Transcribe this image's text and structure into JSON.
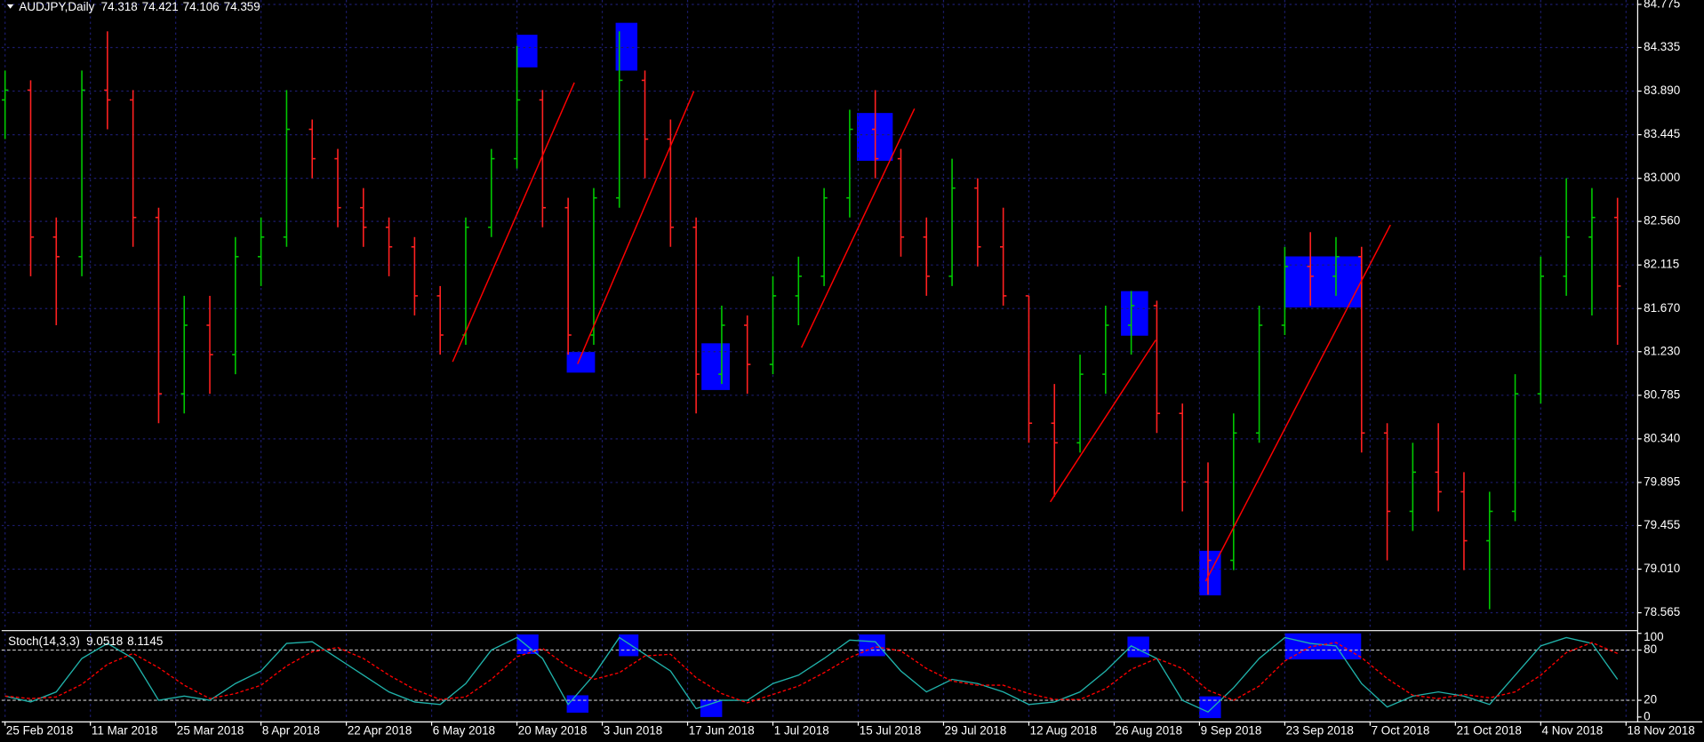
{
  "chart_data": [
    {
      "type": "ohlc",
      "title": "AUDJPY,Daily",
      "readout": [
        74.318,
        74.421,
        74.106,
        74.359
      ],
      "up_color": "#00c800",
      "down_color": "#ff2020",
      "grid": true,
      "x": [
        0,
        3,
        6,
        9,
        12,
        15,
        18,
        21,
        24,
        27,
        30,
        33,
        36,
        39,
        42,
        45,
        48,
        51,
        54,
        57,
        60,
        63,
        66,
        69,
        72,
        75,
        78,
        81,
        84,
        87,
        90,
        93,
        96,
        99,
        102,
        105,
        108,
        111,
        114,
        117,
        120,
        123,
        126,
        129,
        132,
        135,
        138,
        141,
        144,
        147,
        150,
        153,
        156,
        159,
        162,
        165,
        168,
        171,
        174,
        177,
        180,
        183,
        186,
        189
      ],
      "open": [
        83.8,
        83.9,
        82.4,
        82.2,
        83.9,
        83.8,
        82.6,
        80.8,
        81.5,
        81.2,
        82.2,
        82.4,
        83.5,
        83.2,
        82.7,
        82.5,
        82.3,
        81.8,
        81.4,
        82.5,
        83.2,
        83.8,
        82.7,
        81.4,
        82.8,
        84.0,
        83.4,
        82.5,
        81.0,
        81.5,
        81.1,
        81.8,
        82.0,
        82.8,
        83.5,
        83.2,
        82.4,
        82.0,
        82.9,
        82.3,
        81.8,
        80.5,
        80.3,
        81.0,
        81.5,
        81.7,
        80.6,
        79.9,
        79.1,
        80.4,
        81.5,
        82.1,
        82.0,
        82.2,
        80.4,
        79.6,
        80.0,
        79.8,
        79.3,
        79.6,
        80.8,
        82.0,
        82.4,
        82.6
      ],
      "high": [
        84.1,
        84.0,
        82.6,
        84.1,
        84.5,
        83.9,
        82.7,
        81.8,
        81.8,
        82.4,
        82.6,
        83.9,
        83.6,
        83.3,
        82.9,
        82.6,
        82.4,
        81.9,
        82.6,
        83.3,
        84.35,
        83.9,
        82.8,
        82.9,
        84.5,
        84.1,
        83.6,
        82.6,
        81.7,
        81.6,
        82.0,
        82.2,
        82.9,
        83.7,
        83.9,
        83.3,
        82.6,
        83.2,
        83.0,
        82.7,
        81.8,
        80.9,
        81.2,
        81.7,
        81.85,
        81.75,
        80.7,
        80.1,
        80.6,
        81.7,
        82.3,
        82.45,
        82.4,
        82.3,
        80.5,
        80.3,
        80.5,
        80.0,
        79.8,
        81.0,
        82.2,
        83.0,
        82.9,
        82.8
      ],
      "low": [
        83.4,
        82.0,
        81.5,
        82.0,
        83.5,
        82.3,
        80.5,
        80.6,
        80.8,
        81.0,
        81.9,
        82.3,
        83.0,
        82.5,
        82.3,
        82.0,
        81.6,
        81.2,
        81.3,
        82.4,
        83.1,
        82.5,
        81.2,
        81.3,
        82.7,
        83.0,
        82.3,
        80.6,
        80.9,
        80.8,
        81.0,
        81.5,
        81.9,
        82.6,
        83.0,
        82.2,
        81.8,
        81.9,
        82.1,
        81.7,
        80.3,
        79.75,
        80.2,
        80.8,
        81.2,
        80.4,
        79.6,
        78.75,
        79.0,
        80.3,
        81.4,
        81.7,
        81.8,
        80.2,
        79.1,
        79.4,
        79.6,
        79.0,
        78.6,
        79.5,
        80.7,
        81.8,
        81.6,
        81.3
      ],
      "close": [
        83.9,
        82.4,
        82.2,
        83.9,
        83.8,
        82.6,
        80.8,
        81.5,
        81.2,
        82.2,
        82.4,
        83.5,
        83.2,
        82.7,
        82.5,
        82.3,
        81.8,
        81.4,
        82.5,
        83.2,
        83.8,
        82.7,
        81.4,
        82.8,
        84.0,
        83.4,
        82.5,
        81.0,
        81.5,
        81.1,
        81.8,
        82.0,
        82.8,
        83.5,
        83.2,
        82.4,
        82.0,
        82.9,
        82.3,
        81.8,
        80.5,
        80.3,
        81.0,
        81.5,
        81.7,
        80.6,
        79.9,
        79.1,
        80.4,
        81.5,
        82.1,
        82.0,
        82.2,
        80.4,
        79.6,
        80.0,
        79.8,
        79.3,
        79.6,
        80.8,
        82.0,
        82.4,
        82.6,
        81.9
      ],
      "xlim": [
        -0.4,
        191.3
      ],
      "xticks": [
        0,
        10,
        20,
        30,
        40,
        50,
        60,
        70,
        80,
        90,
        100,
        110,
        120,
        130,
        140,
        150,
        160,
        170,
        180,
        190
      ],
      "ylim": [
        78.41,
        84.82
      ],
      "yticks": [
        84.775,
        84.335,
        {
          "value": 83.89,
          "label": "83.890"
        },
        83.445,
        {
          "value": 83.0,
          "label": "83.000"
        },
        {
          "value": 82.56,
          "label": "82.560"
        },
        82.115,
        {
          "value": 81.67,
          "label": "81.670"
        },
        {
          "value": 81.23,
          "label": "81.230"
        },
        80.785,
        {
          "value": 80.34,
          "label": "80.340"
        },
        79.895,
        79.455,
        {
          "value": 79.01,
          "label": "79.010"
        },
        78.565
      ]
    },
    {
      "type": "line",
      "title": "Stoch(14,3,3)",
      "readout": [
        9.0518,
        8.1145
      ],
      "x": [
        0,
        3,
        6,
        9,
        12,
        15,
        18,
        21,
        24,
        27,
        30,
        33,
        36,
        39,
        42,
        45,
        48,
        51,
        54,
        57,
        60,
        63,
        66,
        69,
        72,
        75,
        78,
        81,
        84,
        87,
        90,
        93,
        96,
        99,
        102,
        105,
        108,
        111,
        114,
        117,
        120,
        123,
        126,
        129,
        132,
        135,
        138,
        141,
        144,
        147,
        150,
        153,
        156,
        159,
        162,
        165,
        168,
        171,
        174,
        177,
        180,
        183,
        186,
        189
      ],
      "series": [
        {
          "color": "#20b2aa",
          "values": [
            25,
            18,
            30,
            70,
            88,
            70,
            20,
            25,
            20,
            40,
            55,
            88,
            90,
            70,
            50,
            30,
            18,
            15,
            40,
            80,
            95,
            70,
            15,
            50,
            95,
            75,
            55,
            10,
            20,
            20,
            40,
            50,
            70,
            92,
            90,
            55,
            30,
            45,
            40,
            30,
            15,
            18,
            30,
            55,
            85,
            70,
            20,
            6,
            35,
            70,
            95,
            88,
            85,
            40,
            12,
            25,
            30,
            25,
            15,
            50,
            85,
            95,
            88,
            45
          ]
        },
        {
          "color": "#ff0000",
          "dashed": true,
          "values": [
            25,
            22,
            24,
            39,
            63,
            76,
            59,
            38,
            22,
            28,
            38,
            61,
            78,
            83,
            70,
            50,
            33,
            21,
            24,
            45,
            72,
            82,
            60,
            45,
            53,
            73,
            75,
            47,
            28,
            17,
            27,
            37,
            53,
            71,
            84,
            79,
            58,
            43,
            38,
            38,
            28,
            21,
            21,
            34,
            57,
            70,
            58,
            32,
            20,
            37,
            67,
            84,
            89,
            71,
            46,
            26,
            22,
            27,
            23,
            30,
            50,
            77,
            89,
            76
          ]
        }
      ],
      "xlim": [
        -0.4,
        191.3
      ],
      "xticks": [
        {
          "value": 0,
          "label": "25 Feb 2018"
        },
        {
          "value": 10,
          "label": "11 Mar 2018"
        },
        {
          "value": 20,
          "label": "25 Mar 2018"
        },
        {
          "value": 30,
          "label": "8 Apr 2018"
        },
        {
          "value": 40,
          "label": "22 Apr 2018"
        },
        {
          "value": 50,
          "label": "6 May 2018"
        },
        {
          "value": 60,
          "label": "20 May 2018"
        },
        {
          "value": 70,
          "label": "3 Jun 2018"
        },
        {
          "value": 80,
          "label": "17 Jun 2018"
        },
        {
          "value": 90,
          "label": "1 Jul 2018"
        },
        {
          "value": 100,
          "label": "15 Jul 2018"
        },
        {
          "value": 110,
          "label": "29 Jul 2018"
        },
        {
          "value": 120,
          "label": "12 Aug 2018"
        },
        {
          "value": 130,
          "label": "26 Aug 2018"
        },
        {
          "value": 140,
          "label": "9 Sep 2018"
        },
        {
          "value": 150,
          "label": "23 Sep 2018"
        },
        {
          "value": 160,
          "label": "7 Oct 2018"
        },
        {
          "value": 170,
          "label": "21 Oct 2018"
        },
        {
          "value": 180,
          "label": "4 Nov 2018"
        },
        {
          "value": 190,
          "label": "18 Nov 2018"
        }
      ],
      "ylim": [
        0,
        100
      ],
      "yticks": [
        100,
        80,
        20,
        0
      ],
      "levels": [
        80,
        20
      ]
    }
  ]
}
